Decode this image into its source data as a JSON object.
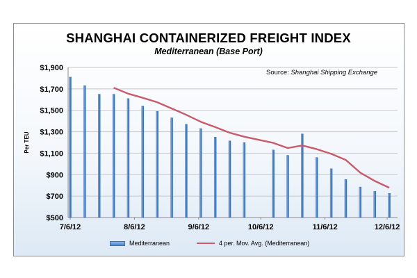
{
  "chart_data": {
    "type": "bar",
    "title": "SHANGHAI CONTAINERIZED FREIGHT INDEX",
    "subtitle": "Mediterranean (Base Port)",
    "source_label": "Source: ",
    "source_name": "Shanghai Shipping Exchange",
    "ylabel": "Per TEU",
    "xlabel": "",
    "ylim": [
      500,
      1900
    ],
    "yticks": [
      500,
      700,
      900,
      1100,
      1300,
      1500,
      1700,
      1900
    ],
    "ytick_labels": [
      "$500",
      "$700",
      "$900",
      "$1,100",
      "$1,300",
      "$1,500",
      "$1,700",
      "$1,900"
    ],
    "xtick_labels": [
      "7/6/12",
      "8/6/12",
      "9/6/12",
      "10/6/12",
      "11/6/12",
      "12/6/12"
    ],
    "xtick_days": [
      0,
      31,
      62,
      92,
      123,
      153
    ],
    "grid": "horizontal",
    "legend_position": "bottom",
    "bar_color": "#4a86d2",
    "line_color": "#c85a6a",
    "series": [
      {
        "name": "Mediterranean",
        "type": "bar",
        "days": [
          0,
          7,
          14,
          21,
          28,
          35,
          42,
          49,
          56,
          63,
          70,
          77,
          84,
          98,
          105,
          112,
          119,
          126,
          133,
          140,
          147,
          154
        ],
        "values": [
          1810,
          1730,
          1650,
          1650,
          1610,
          1540,
          1490,
          1430,
          1370,
          1330,
          1250,
          1215,
          1200,
          1130,
          1080,
          1280,
          1060,
          955,
          855,
          785,
          745,
          725
        ]
      },
      {
        "name": "4 per. Mov. Avg. (Mediterranean)",
        "type": "line",
        "days": [
          21,
          28,
          35,
          42,
          49,
          56,
          63,
          70,
          77,
          84,
          98,
          105,
          112,
          119,
          126,
          133,
          140,
          147,
          154
        ],
        "values": [
          1710,
          1655,
          1617,
          1575,
          1517,
          1458,
          1393,
          1343,
          1291,
          1254,
          1196,
          1148,
          1172,
          1138,
          1094,
          1037,
          919,
          841,
          778
        ]
      }
    ]
  }
}
